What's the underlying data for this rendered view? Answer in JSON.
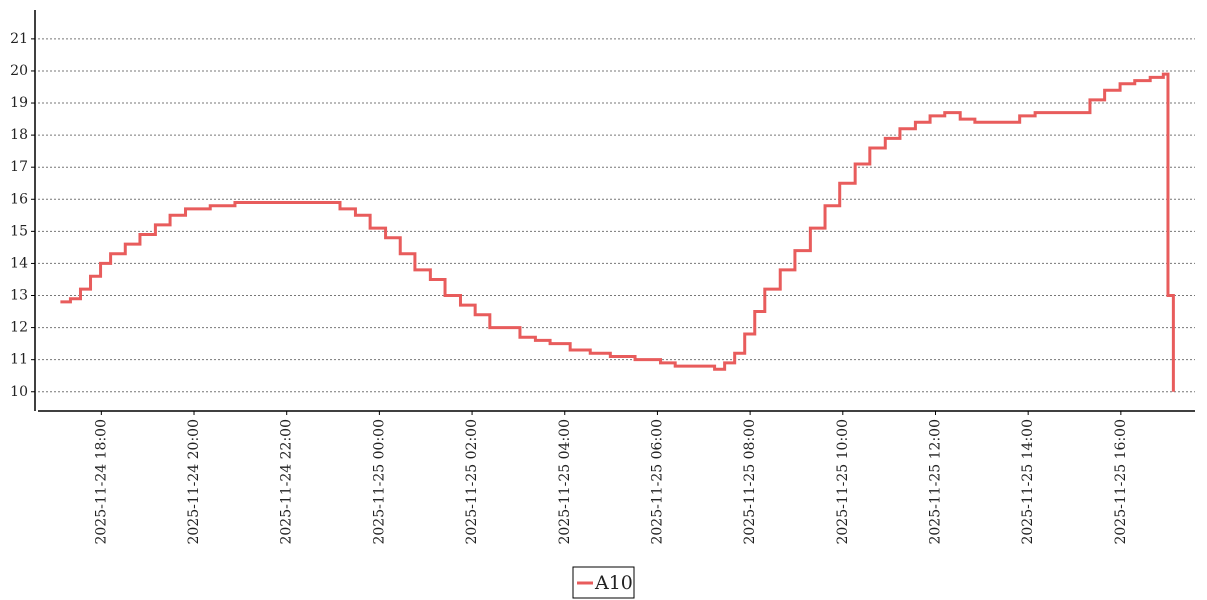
{
  "chart_data": {
    "type": "line",
    "drawstyle": "steps",
    "x": [
      "2025-11-24 17:07",
      "2025-11-24 17:20",
      "2025-11-24 17:33",
      "2025-11-24 17:46",
      "2025-11-24 17:59",
      "2025-11-24 18:12",
      "2025-11-24 18:31",
      "2025-11-24 18:50",
      "2025-11-24 19:10",
      "2025-11-24 19:29",
      "2025-11-24 19:49",
      "2025-11-24 20:08",
      "2025-11-24 20:21",
      "2025-11-24 20:53",
      "2025-11-24 21:52",
      "2025-11-24 22:50",
      "2025-11-24 23:09",
      "2025-11-24 23:29",
      "2025-11-24 23:48",
      "2025-11-25 00:08",
      "2025-11-25 00:27",
      "2025-11-25 00:46",
      "2025-11-25 01:06",
      "2025-11-25 01:25",
      "2025-11-25 01:45",
      "2025-11-25 02:04",
      "2025-11-25 02:23",
      "2025-11-25 02:43",
      "2025-11-25 03:02",
      "2025-11-25 03:22",
      "2025-11-25 03:41",
      "2025-11-25 04:07",
      "2025-11-25 04:33",
      "2025-11-25 04:59",
      "2025-11-25 05:31",
      "2025-11-25 06:04",
      "2025-11-25 06:23",
      "2025-11-25 06:55",
      "2025-11-25 07:14",
      "2025-11-25 07:27",
      "2025-11-25 07:40",
      "2025-11-25 07:53",
      "2025-11-25 08:06",
      "2025-11-25 08:19",
      "2025-11-25 08:39",
      "2025-11-25 08:58",
      "2025-11-25 09:18",
      "2025-11-25 09:37",
      "2025-11-25 09:56",
      "2025-11-25 10:16",
      "2025-11-25 10:35",
      "2025-11-25 10:55",
      "2025-11-25 11:14",
      "2025-11-25 11:34",
      "2025-11-25 11:53",
      "2025-11-25 12:12",
      "2025-11-25 12:32",
      "2025-11-25 12:51",
      "2025-11-25 13:30",
      "2025-11-25 13:49",
      "2025-11-25 14:09",
      "2025-11-25 15:01",
      "2025-11-25 15:20",
      "2025-11-25 15:39",
      "2025-11-25 15:59",
      "2025-11-25 16:18",
      "2025-11-25 16:38",
      "2025-11-25 16:55",
      "2025-11-25 17:01",
      "2025-11-25 17:08"
    ],
    "series": [
      {
        "name": "A10",
        "color": "#e85c5c",
        "values": [
          12.8,
          12.9,
          13.2,
          13.6,
          14.0,
          14.3,
          14.6,
          14.9,
          15.2,
          15.5,
          15.7,
          15.7,
          15.8,
          15.9,
          15.9,
          15.9,
          15.7,
          15.5,
          15.1,
          14.8,
          14.3,
          13.8,
          13.5,
          13.0,
          12.7,
          12.4,
          12.0,
          12.0,
          11.7,
          11.6,
          11.5,
          11.3,
          11.2,
          11.1,
          11.0,
          10.9,
          10.8,
          10.8,
          10.7,
          10.9,
          11.2,
          11.8,
          12.5,
          13.2,
          13.8,
          14.4,
          15.1,
          15.8,
          16.5,
          17.1,
          17.6,
          17.9,
          18.2,
          18.4,
          18.6,
          18.7,
          18.5,
          18.4,
          18.4,
          18.6,
          18.7,
          18.7,
          19.1,
          19.4,
          19.6,
          19.7,
          19.8,
          19.9,
          13.0,
          10.0
        ]
      }
    ],
    "xlim": [
      "2025-11-24 16:38",
      "2025-11-25 17:36"
    ],
    "xticks": [
      "2025-11-24 18:00",
      "2025-11-24 20:00",
      "2025-11-24 22:00",
      "2025-11-25 00:00",
      "2025-11-25 02:00",
      "2025-11-25 04:00",
      "2025-11-25 06:00",
      "2025-11-25 08:00",
      "2025-11-25 10:00",
      "2025-11-25 12:00",
      "2025-11-25 14:00",
      "2025-11-25 16:00"
    ],
    "ylim": [
      9.4,
      21.9
    ],
    "yticks": [
      10,
      11,
      12,
      13,
      14,
      15,
      16,
      17,
      18,
      19,
      20,
      21
    ],
    "grid": true,
    "legend": "bottom"
  }
}
